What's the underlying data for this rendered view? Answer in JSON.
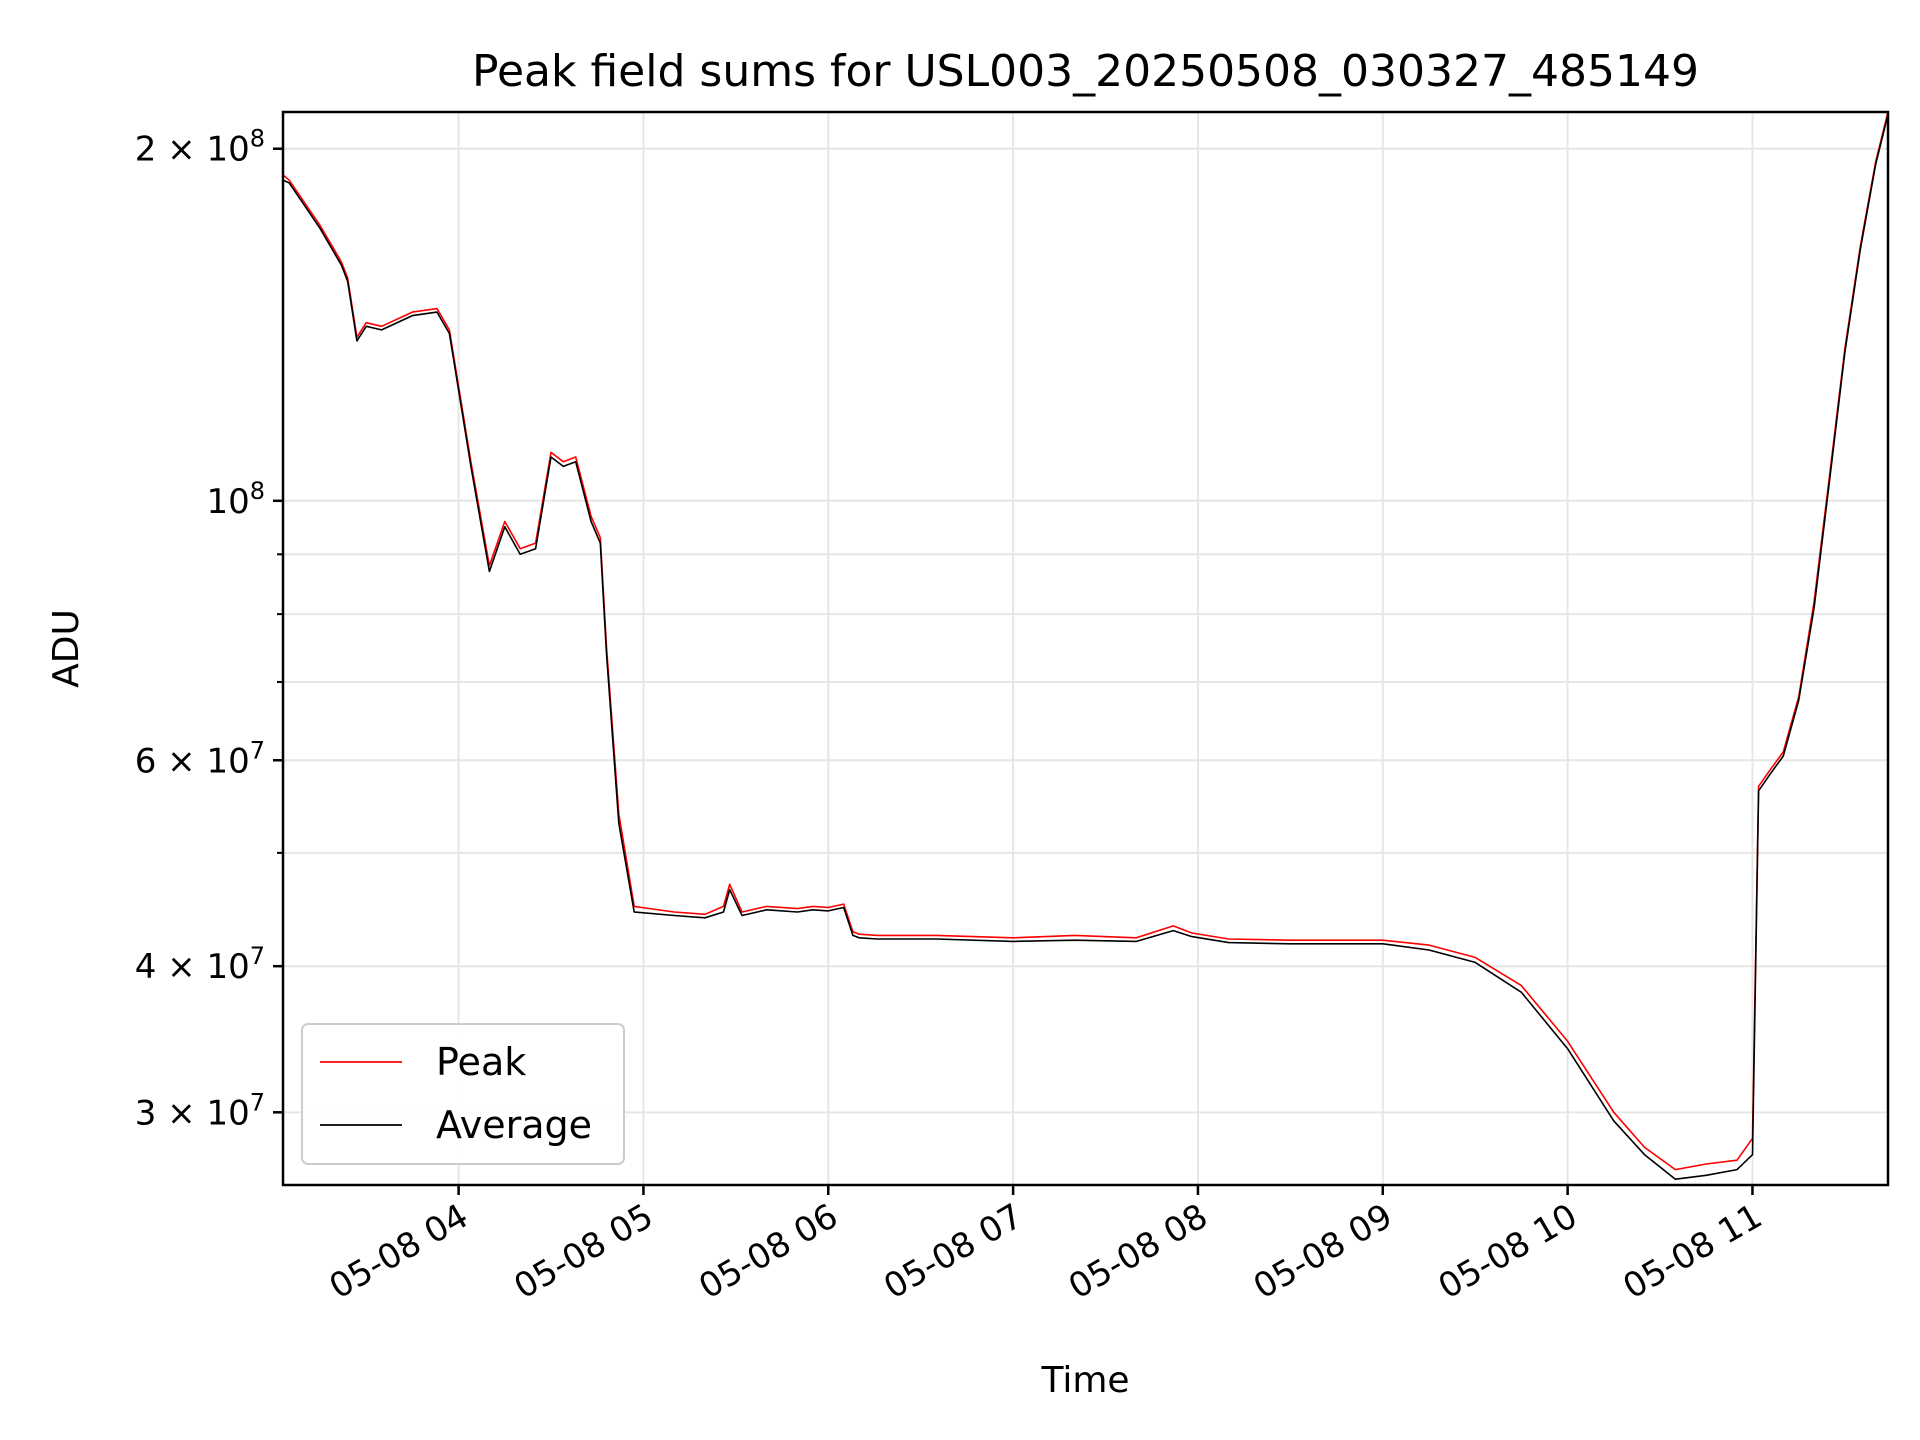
{
  "chart_data": {
    "type": "line",
    "title": "Peak field sums for USL003_20250508_030327_485149",
    "xlabel": "Time",
    "ylabel": "ADU",
    "xscale": "time",
    "yscale": "log",
    "xlim": [
      "2025-05-08 03:03",
      "2025-05-08 11:44"
    ],
    "ylim": [
      26000000,
      215000000
    ],
    "x_ticks": [
      "05-08 04",
      "05-08 05",
      "05-08 06",
      "05-08 07",
      "05-08 08",
      "05-08 09",
      "05-08 10",
      "05-08 11"
    ],
    "y_ticks": [
      {
        "value": 30000000,
        "base": "3",
        "exp": "7"
      },
      {
        "value": 40000000,
        "base": "4",
        "exp": "7"
      },
      {
        "value": 60000000,
        "base": "6",
        "exp": "7"
      },
      {
        "value": 100000000,
        "base": "",
        "exp": "8"
      },
      {
        "value": 200000000,
        "base": "2",
        "exp": "8"
      }
    ],
    "y_minor_ticks": [
      50000000,
      70000000,
      80000000,
      90000000
    ],
    "grid": true,
    "legend_position": "lower-left",
    "series": [
      {
        "name": "Peak",
        "color": "#ff0000",
        "x": [
          "2025-05-08 03:03",
          "2025-05-08 03:05",
          "2025-05-08 03:15",
          "2025-05-08 03:22",
          "2025-05-08 03:24",
          "2025-05-08 03:27",
          "2025-05-08 03:30",
          "2025-05-08 03:35",
          "2025-05-08 03:45",
          "2025-05-08 03:53",
          "2025-05-08 03:57",
          "2025-05-08 04:04",
          "2025-05-08 04:10",
          "2025-05-08 04:15",
          "2025-05-08 04:20",
          "2025-05-08 04:25",
          "2025-05-08 04:30",
          "2025-05-08 04:34",
          "2025-05-08 04:38",
          "2025-05-08 04:43",
          "2025-05-08 04:46",
          "2025-05-08 04:48",
          "2025-05-08 04:52",
          "2025-05-08 04:57",
          "2025-05-08 05:10",
          "2025-05-08 05:20",
          "2025-05-08 05:26",
          "2025-05-08 05:28",
          "2025-05-08 05:32",
          "2025-05-08 05:40",
          "2025-05-08 05:50",
          "2025-05-08 05:55",
          "2025-05-08 06:00",
          "2025-05-08 06:05",
          "2025-05-08 06:08",
          "2025-05-08 06:10",
          "2025-05-08 06:16",
          "2025-05-08 06:35",
          "2025-05-08 07:00",
          "2025-05-08 07:20",
          "2025-05-08 07:40",
          "2025-05-08 07:52",
          "2025-05-08 07:58",
          "2025-05-08 08:10",
          "2025-05-08 08:30",
          "2025-05-08 08:50",
          "2025-05-08 09:00",
          "2025-05-08 09:15",
          "2025-05-08 09:30",
          "2025-05-08 09:45",
          "2025-05-08 10:00",
          "2025-05-08 10:15",
          "2025-05-08 10:25",
          "2025-05-08 10:35",
          "2025-05-08 10:45",
          "2025-05-08 10:55",
          "2025-05-08 11:00",
          "2025-05-08 11:02",
          "2025-05-08 11:06",
          "2025-05-08 11:10",
          "2025-05-08 11:15",
          "2025-05-08 11:20",
          "2025-05-08 11:25",
          "2025-05-08 11:30",
          "2025-05-08 11:35",
          "2025-05-08 11:40",
          "2025-05-08 11:44"
        ],
        "values": [
          190000000,
          188000000,
          172000000,
          160000000,
          155000000,
          138000000,
          142000000,
          141000000,
          145000000,
          146000000,
          140000000,
          108000000,
          88000000,
          96000000,
          91000000,
          92000000,
          110000000,
          108000000,
          109000000,
          97000000,
          93000000,
          75000000,
          54000000,
          45000000,
          44500000,
          44300000,
          45000000,
          47000000,
          44500000,
          45000000,
          44800000,
          45000000,
          44900000,
          45200000,
          42800000,
          42600000,
          42500000,
          42500000,
          42300000,
          42500000,
          42300000,
          43300000,
          42700000,
          42200000,
          42100000,
          42100000,
          42100000,
          41700000,
          40700000,
          38500000,
          34500000,
          30000000,
          28000000,
          26800000,
          27100000,
          27300000,
          28500000,
          57000000,
          59000000,
          61000000,
          68000000,
          82000000,
          105000000,
          135000000,
          165000000,
          195000000,
          215000000
        ]
      },
      {
        "name": "Average",
        "color": "#000000",
        "x": [
          "2025-05-08 03:03",
          "2025-05-08 03:05",
          "2025-05-08 03:15",
          "2025-05-08 03:22",
          "2025-05-08 03:24",
          "2025-05-08 03:27",
          "2025-05-08 03:30",
          "2025-05-08 03:35",
          "2025-05-08 03:45",
          "2025-05-08 03:53",
          "2025-05-08 03:57",
          "2025-05-08 04:04",
          "2025-05-08 04:10",
          "2025-05-08 04:15",
          "2025-05-08 04:20",
          "2025-05-08 04:25",
          "2025-05-08 04:30",
          "2025-05-08 04:34",
          "2025-05-08 04:38",
          "2025-05-08 04:43",
          "2025-05-08 04:46",
          "2025-05-08 04:48",
          "2025-05-08 04:52",
          "2025-05-08 04:57",
          "2025-05-08 05:10",
          "2025-05-08 05:20",
          "2025-05-08 05:26",
          "2025-05-08 05:28",
          "2025-05-08 05:32",
          "2025-05-08 05:40",
          "2025-05-08 05:50",
          "2025-05-08 05:55",
          "2025-05-08 06:00",
          "2025-05-08 06:05",
          "2025-05-08 06:08",
          "2025-05-08 06:10",
          "2025-05-08 06:16",
          "2025-05-08 06:35",
          "2025-05-08 07:00",
          "2025-05-08 07:20",
          "2025-05-08 07:40",
          "2025-05-08 07:52",
          "2025-05-08 07:58",
          "2025-05-08 08:10",
          "2025-05-08 08:30",
          "2025-05-08 08:50",
          "2025-05-08 09:00",
          "2025-05-08 09:15",
          "2025-05-08 09:30",
          "2025-05-08 09:45",
          "2025-05-08 10:00",
          "2025-05-08 10:15",
          "2025-05-08 10:25",
          "2025-05-08 10:35",
          "2025-05-08 10:45",
          "2025-05-08 10:55",
          "2025-05-08 11:00",
          "2025-05-08 11:02",
          "2025-05-08 11:06",
          "2025-05-08 11:10",
          "2025-05-08 11:15",
          "2025-05-08 11:20",
          "2025-05-08 11:25",
          "2025-05-08 11:30",
          "2025-05-08 11:35",
          "2025-05-08 11:40",
          "2025-05-08 11:44"
        ],
        "values": [
          188000000,
          187000000,
          171000000,
          159000000,
          154000000,
          137000000,
          141000000,
          140000000,
          144000000,
          145000000,
          139000000,
          107000000,
          87000000,
          95000000,
          90000000,
          91000000,
          109000000,
          107000000,
          108000000,
          96000000,
          92000000,
          74000000,
          53000000,
          44500000,
          44200000,
          44000000,
          44500000,
          46500000,
          44200000,
          44700000,
          44500000,
          44700000,
          44600000,
          44900000,
          42500000,
          42300000,
          42200000,
          42200000,
          42000000,
          42100000,
          42000000,
          42900000,
          42400000,
          41900000,
          41800000,
          41800000,
          41800000,
          41300000,
          40300000,
          38000000,
          34000000,
          29500000,
          27600000,
          26300000,
          26500000,
          26800000,
          27600000,
          56500000,
          58500000,
          60500000,
          67500000,
          81000000,
          104000000,
          134000000,
          164000000,
          194000000,
          214000000
        ]
      }
    ]
  }
}
